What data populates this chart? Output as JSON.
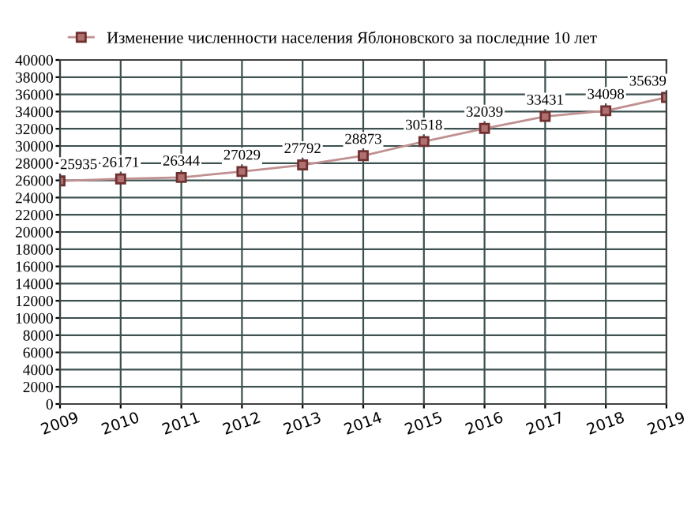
{
  "chart_data": {
    "type": "line",
    "x": [
      2009,
      2010,
      2011,
      2012,
      2013,
      2014,
      2015,
      2016,
      2017,
      2018,
      2019
    ],
    "series": [
      {
        "name": "Изменение численности населения Яблоновского за последние 10 лет",
        "color": "#c09090",
        "values": [
          25935,
          26171,
          26344,
          27029,
          27792,
          28873,
          30518,
          32039,
          33431,
          34098,
          35639
        ]
      }
    ],
    "xlim": [
      2009,
      2019
    ],
    "xticks": [
      2009,
      2010,
      2011,
      2012,
      2013,
      2014,
      2015,
      2016,
      2017,
      2018,
      2019
    ],
    "ylim": [
      0,
      40000
    ],
    "yticks": [
      0,
      2000,
      4000,
      6000,
      8000,
      10000,
      12000,
      14000,
      16000,
      18000,
      20000,
      22000,
      24000,
      26000,
      28000,
      30000,
      32000,
      34000,
      36000,
      38000,
      40000
    ],
    "grid": true,
    "legend": "top",
    "marker": "square",
    "line_style": "solid",
    "data_labels": true
  }
}
